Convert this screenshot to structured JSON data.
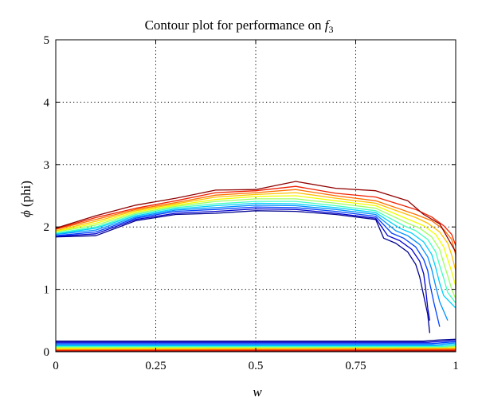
{
  "chart_data": {
    "type": "contour",
    "title": "Contour plot for performance on ",
    "title_math": "f",
    "title_math_sub": "3",
    "xlabel": "w",
    "ylabel_symbol": "ϕ",
    "ylabel_text": " (phi)",
    "xlim": [
      0,
      1
    ],
    "ylim": [
      0,
      5
    ],
    "xticks": [
      0,
      0.25,
      0.5,
      0.75,
      1
    ],
    "xtick_labels": [
      "0",
      "0.25",
      "0.5",
      "0.75",
      "1"
    ],
    "yticks": [
      0,
      1,
      2,
      3,
      4,
      5
    ],
    "ytick_labels": [
      "0",
      "1",
      "2",
      "3",
      "4",
      "5"
    ],
    "grid": "dotted",
    "colormap": [
      "#00008f",
      "#0000d0",
      "#0040ff",
      "#0090ff",
      "#00d0ff",
      "#40ffbf",
      "#a0ff60",
      "#f0ff00",
      "#ffc000",
      "#ff7000",
      "#f02000",
      "#900000"
    ],
    "upper_contours": [
      [
        [
          0,
          1.84
        ],
        [
          0.1,
          1.86
        ],
        [
          0.2,
          2.1
        ],
        [
          0.3,
          2.2
        ],
        [
          0.4,
          2.22
        ],
        [
          0.5,
          2.26
        ],
        [
          0.6,
          2.25
        ],
        [
          0.7,
          2.2
        ],
        [
          0.8,
          2.12
        ],
        [
          0.82,
          1.82
        ],
        [
          0.85,
          1.74
        ],
        [
          0.88,
          1.6
        ],
        [
          0.9,
          1.4
        ],
        [
          0.91,
          1.2
        ],
        [
          0.92,
          0.9
        ],
        [
          0.93,
          0.6
        ],
        [
          0.935,
          0.3
        ]
      ],
      [
        [
          0,
          1.85
        ],
        [
          0.1,
          1.89
        ],
        [
          0.2,
          2.12
        ],
        [
          0.3,
          2.22
        ],
        [
          0.4,
          2.25
        ],
        [
          0.5,
          2.29
        ],
        [
          0.6,
          2.28
        ],
        [
          0.7,
          2.22
        ],
        [
          0.8,
          2.14
        ],
        [
          0.83,
          1.86
        ],
        [
          0.86,
          1.78
        ],
        [
          0.89,
          1.64
        ],
        [
          0.91,
          1.45
        ],
        [
          0.92,
          1.25
        ],
        [
          0.925,
          1.0
        ],
        [
          0.93,
          0.7
        ],
        [
          0.935,
          0.5
        ]
      ],
      [
        [
          0,
          1.86
        ],
        [
          0.1,
          1.92
        ],
        [
          0.2,
          2.14
        ],
        [
          0.3,
          2.25
        ],
        [
          0.4,
          2.28
        ],
        [
          0.5,
          2.32
        ],
        [
          0.6,
          2.31
        ],
        [
          0.7,
          2.25
        ],
        [
          0.8,
          2.17
        ],
        [
          0.84,
          1.9
        ],
        [
          0.87,
          1.82
        ],
        [
          0.9,
          1.68
        ],
        [
          0.92,
          1.48
        ],
        [
          0.93,
          1.3
        ],
        [
          0.935,
          1.1
        ],
        [
          0.945,
          0.8
        ],
        [
          0.96,
          0.4
        ]
      ],
      [
        [
          0,
          1.88
        ],
        [
          0.1,
          1.95
        ],
        [
          0.2,
          2.16
        ],
        [
          0.3,
          2.27
        ],
        [
          0.4,
          2.31
        ],
        [
          0.5,
          2.35
        ],
        [
          0.6,
          2.34
        ],
        [
          0.7,
          2.28
        ],
        [
          0.8,
          2.2
        ],
        [
          0.85,
          1.94
        ],
        [
          0.88,
          1.86
        ],
        [
          0.91,
          1.72
        ],
        [
          0.93,
          1.52
        ],
        [
          0.94,
          1.32
        ],
        [
          0.95,
          1.05
        ],
        [
          0.96,
          0.8
        ],
        [
          0.98,
          0.5
        ]
      ],
      [
        [
          0,
          1.89
        ],
        [
          0.1,
          1.98
        ],
        [
          0.2,
          2.18
        ],
        [
          0.3,
          2.29
        ],
        [
          0.4,
          2.34
        ],
        [
          0.5,
          2.38
        ],
        [
          0.6,
          2.37
        ],
        [
          0.7,
          2.31
        ],
        [
          0.8,
          2.23
        ],
        [
          0.86,
          1.98
        ],
        [
          0.89,
          1.9
        ],
        [
          0.92,
          1.76
        ],
        [
          0.94,
          1.56
        ],
        [
          0.95,
          1.35
        ],
        [
          0.96,
          1.1
        ],
        [
          0.97,
          0.9
        ],
        [
          1,
          0.7
        ]
      ],
      [
        [
          0,
          1.9
        ],
        [
          0.1,
          2.0
        ],
        [
          0.2,
          2.2
        ],
        [
          0.3,
          2.31
        ],
        [
          0.4,
          2.37
        ],
        [
          0.5,
          2.41
        ],
        [
          0.6,
          2.41
        ],
        [
          0.7,
          2.34
        ],
        [
          0.8,
          2.26
        ],
        [
          0.87,
          2.02
        ],
        [
          0.9,
          1.94
        ],
        [
          0.93,
          1.8
        ],
        [
          0.95,
          1.6
        ],
        [
          0.96,
          1.38
        ],
        [
          0.97,
          1.18
        ],
        [
          0.98,
          0.95
        ],
        [
          1,
          0.78
        ]
      ],
      [
        [
          0,
          1.92
        ],
        [
          0.1,
          2.03
        ],
        [
          0.2,
          2.22
        ],
        [
          0.3,
          2.33
        ],
        [
          0.4,
          2.41
        ],
        [
          0.5,
          2.45
        ],
        [
          0.6,
          2.45
        ],
        [
          0.7,
          2.38
        ],
        [
          0.8,
          2.3
        ],
        [
          0.88,
          2.06
        ],
        [
          0.91,
          1.98
        ],
        [
          0.94,
          1.84
        ],
        [
          0.96,
          1.64
        ],
        [
          0.97,
          1.42
        ],
        [
          0.98,
          1.22
        ],
        [
          0.99,
          1.0
        ],
        [
          1,
          0.85
        ]
      ],
      [
        [
          0,
          1.93
        ],
        [
          0.1,
          2.06
        ],
        [
          0.2,
          2.24
        ],
        [
          0.3,
          2.35
        ],
        [
          0.4,
          2.44
        ],
        [
          0.5,
          2.49
        ],
        [
          0.6,
          2.5
        ],
        [
          0.7,
          2.42
        ],
        [
          0.8,
          2.34
        ],
        [
          0.89,
          2.1
        ],
        [
          0.92,
          2.02
        ],
        [
          0.95,
          1.88
        ],
        [
          0.97,
          1.68
        ],
        [
          0.98,
          1.48
        ],
        [
          0.99,
          1.28
        ],
        [
          1,
          1.05
        ]
      ],
      [
        [
          0,
          1.94
        ],
        [
          0.1,
          2.09
        ],
        [
          0.2,
          2.26
        ],
        [
          0.3,
          2.37
        ],
        [
          0.4,
          2.48
        ],
        [
          0.5,
          2.52
        ],
        [
          0.6,
          2.55
        ],
        [
          0.7,
          2.46
        ],
        [
          0.8,
          2.38
        ],
        [
          0.9,
          2.15
        ],
        [
          0.93,
          2.06
        ],
        [
          0.96,
          1.92
        ],
        [
          0.98,
          1.74
        ],
        [
          0.99,
          1.55
        ],
        [
          1,
          1.3
        ]
      ],
      [
        [
          0,
          1.96
        ],
        [
          0.1,
          2.12
        ],
        [
          0.2,
          2.28
        ],
        [
          0.3,
          2.39
        ],
        [
          0.4,
          2.51
        ],
        [
          0.5,
          2.55
        ],
        [
          0.6,
          2.6
        ],
        [
          0.7,
          2.5
        ],
        [
          0.8,
          2.42
        ],
        [
          0.9,
          2.2
        ],
        [
          0.94,
          2.1
        ],
        [
          0.97,
          1.96
        ],
        [
          0.99,
          1.8
        ],
        [
          1,
          1.55
        ]
      ],
      [
        [
          0,
          1.97
        ],
        [
          0.1,
          2.15
        ],
        [
          0.2,
          2.3
        ],
        [
          0.3,
          2.42
        ],
        [
          0.4,
          2.55
        ],
        [
          0.5,
          2.58
        ],
        [
          0.6,
          2.65
        ],
        [
          0.7,
          2.54
        ],
        [
          0.8,
          2.48
        ],
        [
          0.9,
          2.28
        ],
        [
          0.94,
          2.16
        ],
        [
          0.97,
          2.02
        ],
        [
          0.99,
          1.88
        ],
        [
          1,
          1.7
        ]
      ],
      [
        [
          0,
          1.98
        ],
        [
          0.1,
          2.18
        ],
        [
          0.2,
          2.35
        ],
        [
          0.3,
          2.46
        ],
        [
          0.4,
          2.59
        ],
        [
          0.5,
          2.6
        ],
        [
          0.6,
          2.73
        ],
        [
          0.7,
          2.62
        ],
        [
          0.8,
          2.58
        ],
        [
          0.88,
          2.42
        ],
        [
          0.92,
          2.2
        ],
        [
          0.96,
          2.05
        ],
        [
          1,
          1.6
        ],
        [
          1,
          1.0
        ]
      ]
    ],
    "lower_contours": [
      [
        [
          0,
          0.17
        ],
        [
          0.92,
          0.17
        ],
        [
          0.96,
          0.19
        ],
        [
          1,
          0.2
        ]
      ],
      [
        [
          0,
          0.15
        ],
        [
          0.93,
          0.15
        ],
        [
          0.97,
          0.17
        ],
        [
          1,
          0.18
        ]
      ],
      [
        [
          0,
          0.13
        ],
        [
          0.94,
          0.13
        ],
        [
          0.98,
          0.15
        ],
        [
          1,
          0.16
        ]
      ],
      [
        [
          0,
          0.11
        ],
        [
          0.95,
          0.11
        ],
        [
          0.98,
          0.13
        ],
        [
          1,
          0.14
        ]
      ],
      [
        [
          0,
          0.095
        ],
        [
          0.96,
          0.095
        ],
        [
          1,
          0.12
        ]
      ],
      [
        [
          0,
          0.08
        ],
        [
          0.97,
          0.08
        ],
        [
          1,
          0.1
        ]
      ],
      [
        [
          0,
          0.066
        ],
        [
          0.97,
          0.068
        ],
        [
          1,
          0.085
        ]
      ],
      [
        [
          0,
          0.052
        ],
        [
          0.98,
          0.055
        ],
        [
          1,
          0.07
        ]
      ],
      [
        [
          0,
          0.04
        ],
        [
          1,
          0.055
        ]
      ],
      [
        [
          0,
          0.028
        ],
        [
          1,
          0.04
        ]
      ],
      [
        [
          0,
          0.016
        ],
        [
          1,
          0.025
        ]
      ],
      [
        [
          0,
          0.006
        ],
        [
          1,
          0.012
        ]
      ]
    ]
  }
}
